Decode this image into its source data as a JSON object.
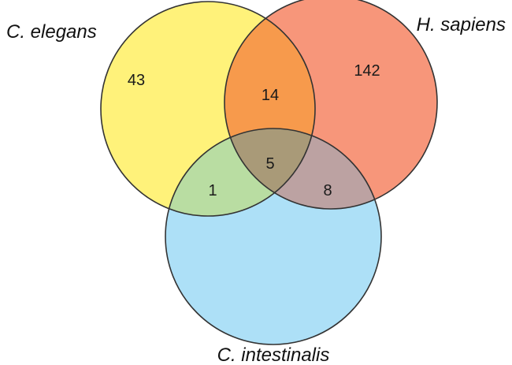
{
  "sets": [
    {
      "id": "elegans",
      "label": "C. elegans",
      "fill": "#FFF27A"
    },
    {
      "id": "sapiens",
      "label": "H. sapiens",
      "fill": "#F7967A"
    },
    {
      "id": "intestinalis",
      "label": "C. intestinalis",
      "fill": "#ADE0F7"
    }
  ],
  "regions": {
    "elegans_only": {
      "count": "43",
      "fill": "#FFF27A"
    },
    "sapiens_only": {
      "count": "142",
      "fill": "#F7967A"
    },
    "intestinalis_only": {
      "count": "",
      "fill": "#ADE0F7"
    },
    "elegans_sapiens": {
      "count": "14",
      "fill": "#F79A4C"
    },
    "elegans_intestinalis": {
      "count": "1",
      "fill": "#B9DDA2"
    },
    "sapiens_intestinalis": {
      "count": "8",
      "fill": "#BCA2A2"
    },
    "all_three": {
      "count": "5",
      "fill": "#A99A78"
    }
  }
}
